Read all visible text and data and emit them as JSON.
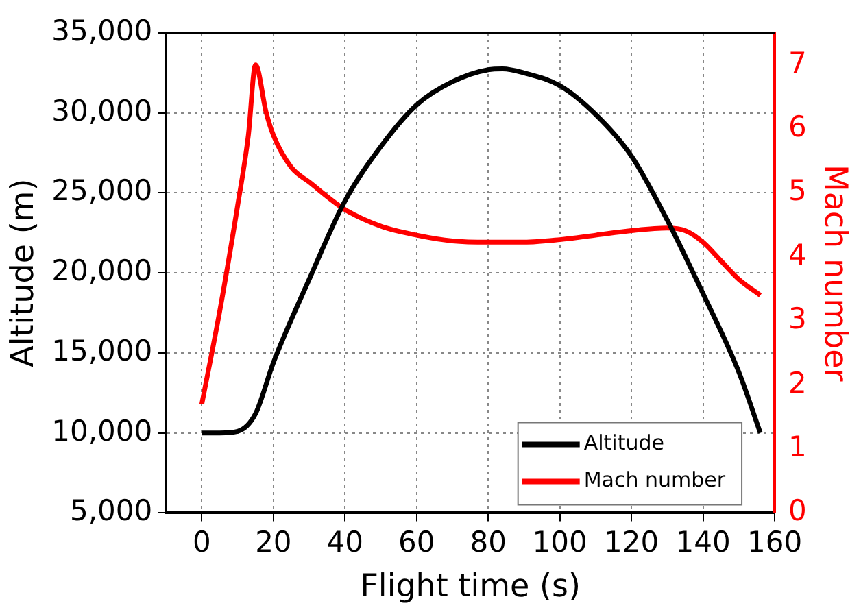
{
  "chart_data": {
    "type": "line",
    "xlabel": "Flight time (s)",
    "ylabel": "Altitude (m)",
    "y2label": "Mach number",
    "xlim": [
      -10,
      160
    ],
    "xticks": [
      0,
      20,
      40,
      60,
      80,
      100,
      120,
      140,
      160
    ],
    "ylim": [
      5000,
      35000
    ],
    "yticks": [
      {
        "value": 5000,
        "label": "5,000"
      },
      {
        "value": 10000,
        "label": "10,000"
      },
      {
        "value": 15000,
        "label": "15,000"
      },
      {
        "value": 20000,
        "label": "20,000"
      },
      {
        "value": 25000,
        "label": "25,000"
      },
      {
        "value": 30000,
        "label": "30,000"
      },
      {
        "value": 35000,
        "label": "35,000"
      }
    ],
    "y2lim": [
      0,
      7.5
    ],
    "y2ticks": [
      0,
      1,
      2,
      3,
      4,
      5,
      6,
      7
    ],
    "grid": true,
    "legend": "bottom right",
    "line_style": "solid",
    "marker": "none",
    "series": [
      {
        "name": "Altitude",
        "color": "#000000",
        "x": [
          0,
          5,
          10,
          15,
          20,
          30,
          40,
          50,
          60,
          70,
          80,
          84,
          90,
          100,
          110,
          120,
          130,
          140,
          150,
          156
        ],
        "values": [
          10000,
          10000,
          10100,
          11200,
          14400,
          19600,
          24500,
          27900,
          30500,
          31950,
          32700,
          32750,
          32500,
          31700,
          29900,
          27300,
          23300,
          18700,
          13800,
          10000
        ]
      },
      {
        "name": "Mach number",
        "color": "#ff0000",
        "axis": "y2",
        "x": [
          0,
          5,
          10,
          13,
          15,
          18,
          20,
          25,
          30,
          40,
          50,
          60,
          70,
          80,
          90,
          100,
          110,
          120,
          130,
          135,
          140,
          145,
          150,
          156
        ],
        "values": [
          1.7,
          3.15,
          4.8,
          5.9,
          7.0,
          6.25,
          5.9,
          5.4,
          5.17,
          4.74,
          4.48,
          4.34,
          4.25,
          4.23,
          4.23,
          4.27,
          4.34,
          4.41,
          4.45,
          4.41,
          4.23,
          3.94,
          3.65,
          3.4
        ]
      }
    ]
  }
}
